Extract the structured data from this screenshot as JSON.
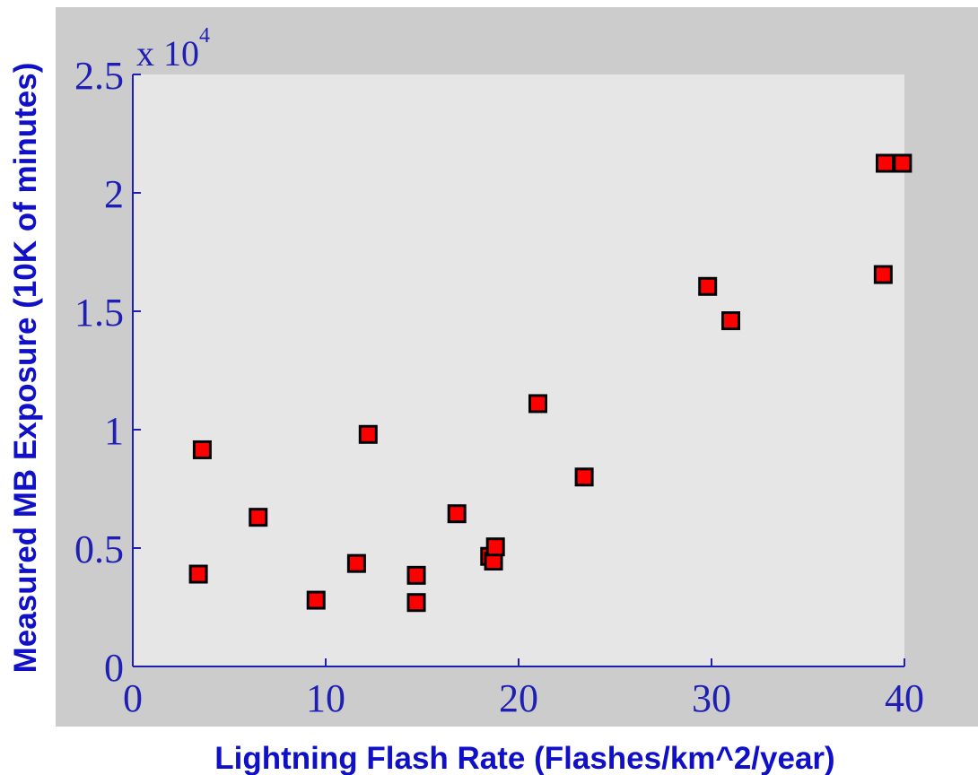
{
  "chart_data": {
    "type": "scatter",
    "xlabel": "Lightning Flash Rate (Flashes/km^2/year)",
    "ylabel": "Measured MB Exposure (10K of minutes)",
    "y_multiplier_label": {
      "base": "x 10",
      "exponent": "4"
    },
    "xlim": [
      0,
      40
    ],
    "ylim": [
      0,
      25000
    ],
    "xticks": [
      0,
      10,
      20,
      30,
      40
    ],
    "xtick_labels": [
      "0",
      "10",
      "20",
      "30",
      "40"
    ],
    "yticks": [
      0,
      5000,
      10000,
      15000,
      20000,
      25000
    ],
    "ytick_labels": [
      "0",
      "0.5",
      "1",
      "1.5",
      "2",
      "2.5"
    ],
    "grid": false,
    "series": [
      {
        "marker": "square",
        "color": "#ff0000",
        "edge_color": "#000000",
        "points": [
          {
            "x": 3.4,
            "y": 3900
          },
          {
            "x": 3.6,
            "y": 9150
          },
          {
            "x": 6.5,
            "y": 6300
          },
          {
            "x": 9.5,
            "y": 2800
          },
          {
            "x": 11.6,
            "y": 4350
          },
          {
            "x": 12.2,
            "y": 9800
          },
          {
            "x": 14.7,
            "y": 3850
          },
          {
            "x": 14.7,
            "y": 2700
          },
          {
            "x": 16.8,
            "y": 6450
          },
          {
            "x": 18.5,
            "y": 4650
          },
          {
            "x": 18.7,
            "y": 4450
          },
          {
            "x": 18.8,
            "y": 5050
          },
          {
            "x": 21.0,
            "y": 11100
          },
          {
            "x": 23.4,
            "y": 8000
          },
          {
            "x": 29.8,
            "y": 16050
          },
          {
            "x": 31.0,
            "y": 14600
          },
          {
            "x": 38.9,
            "y": 16550
          },
          {
            "x": 39.0,
            "y": 21250
          },
          {
            "x": 39.9,
            "y": 21250
          }
        ]
      }
    ]
  },
  "colors": {
    "figure_background": "#cccccc",
    "axes_background": "#e6e6e6",
    "axis_color": "#1f1fb4",
    "label_color": "#1010c8"
  }
}
